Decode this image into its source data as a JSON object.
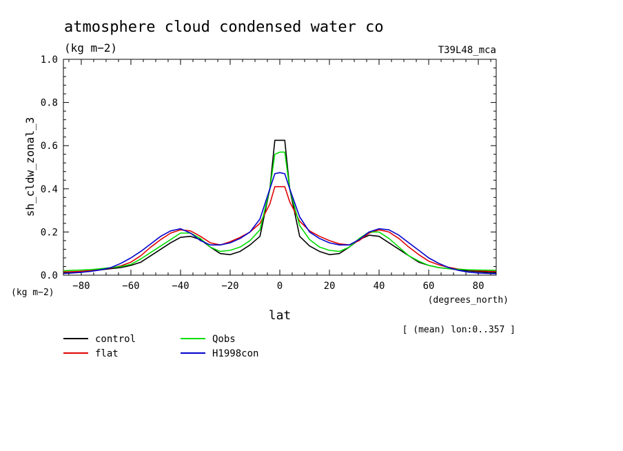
{
  "chart_data": {
    "type": "line",
    "title": "atmosphere cloud condensed water co",
    "units_label": "(kg m−2)",
    "run_label": "T39L48_mca",
    "ylabel": "sh_cldw_zonal_3",
    "xlabel": "lat",
    "x_units": "(degrees_north)",
    "y_units": "(kg m−2)",
    "note": "[ (mean) lon:0..357 ]",
    "xlim": [
      -87.2,
      87.2
    ],
    "ylim": [
      0,
      1
    ],
    "x_ticks": [
      -80,
      -60,
      -40,
      -20,
      0,
      20,
      40,
      60,
      80
    ],
    "x_tick_labels": [
      "−80",
      "−60",
      "−40",
      "−20",
      "0",
      "20",
      "40",
      "60",
      "80"
    ],
    "y_ticks": [
      0,
      0.2,
      0.4,
      0.6,
      0.8,
      1.0
    ],
    "y_tick_labels": [
      "0.0",
      "0.2",
      "0.4",
      "0.6",
      "0.8",
      "1.0"
    ],
    "legend_position": "bottom-left",
    "x": [
      -87.2,
      -84,
      -80,
      -76,
      -72,
      -68,
      -64,
      -60,
      -56,
      -52,
      -48,
      -44,
      -40,
      -36,
      -32,
      -28,
      -24,
      -20,
      -16,
      -12,
      -8,
      -4,
      -2,
      0,
      2,
      4,
      8,
      12,
      16,
      20,
      24,
      28,
      32,
      36,
      40,
      44,
      48,
      52,
      56,
      60,
      64,
      68,
      72,
      76,
      80,
      84,
      87.2
    ],
    "series": [
      {
        "name": "control",
        "color": "#000000",
        "values": [
          0.012,
          0.013,
          0.016,
          0.02,
          0.025,
          0.03,
          0.035,
          0.045,
          0.06,
          0.09,
          0.12,
          0.15,
          0.175,
          0.18,
          0.165,
          0.13,
          0.1,
          0.095,
          0.11,
          0.14,
          0.18,
          0.4,
          0.625,
          0.625,
          0.625,
          0.4,
          0.18,
          0.135,
          0.11,
          0.095,
          0.1,
          0.13,
          0.165,
          0.185,
          0.18,
          0.15,
          0.12,
          0.09,
          0.06,
          0.045,
          0.035,
          0.03,
          0.025,
          0.02,
          0.016,
          0.013,
          0.012
        ]
      },
      {
        "name": "flat",
        "color": "#e00000",
        "values": [
          0.015,
          0.016,
          0.018,
          0.022,
          0.027,
          0.033,
          0.043,
          0.06,
          0.09,
          0.13,
          0.165,
          0.195,
          0.21,
          0.205,
          0.18,
          0.15,
          0.14,
          0.155,
          0.175,
          0.2,
          0.24,
          0.33,
          0.41,
          0.41,
          0.41,
          0.34,
          0.25,
          0.205,
          0.18,
          0.16,
          0.145,
          0.14,
          0.16,
          0.195,
          0.21,
          0.2,
          0.17,
          0.13,
          0.095,
          0.065,
          0.048,
          0.036,
          0.028,
          0.024,
          0.02,
          0.018,
          0.018
        ]
      },
      {
        "name": "Qobs",
        "color": "#00dd00",
        "values": [
          0.02,
          0.022,
          0.024,
          0.026,
          0.03,
          0.035,
          0.04,
          0.05,
          0.075,
          0.105,
          0.135,
          0.165,
          0.195,
          0.195,
          0.17,
          0.13,
          0.11,
          0.115,
          0.13,
          0.16,
          0.21,
          0.4,
          0.56,
          0.57,
          0.57,
          0.4,
          0.23,
          0.165,
          0.13,
          0.115,
          0.11,
          0.13,
          0.17,
          0.2,
          0.2,
          0.17,
          0.13,
          0.09,
          0.065,
          0.045,
          0.035,
          0.03,
          0.027,
          0.025,
          0.024,
          0.023,
          0.022
        ]
      },
      {
        "name": "H1998con",
        "color": "#0000cc",
        "values": [
          0.008,
          0.01,
          0.013,
          0.018,
          0.025,
          0.035,
          0.055,
          0.08,
          0.11,
          0.145,
          0.18,
          0.205,
          0.215,
          0.195,
          0.16,
          0.14,
          0.14,
          0.15,
          0.17,
          0.2,
          0.26,
          0.4,
          0.47,
          0.475,
          0.47,
          0.4,
          0.27,
          0.2,
          0.17,
          0.15,
          0.14,
          0.14,
          0.165,
          0.2,
          0.215,
          0.21,
          0.185,
          0.15,
          0.115,
          0.08,
          0.055,
          0.035,
          0.022,
          0.014,
          0.01,
          0.008,
          0.007
        ]
      }
    ]
  }
}
